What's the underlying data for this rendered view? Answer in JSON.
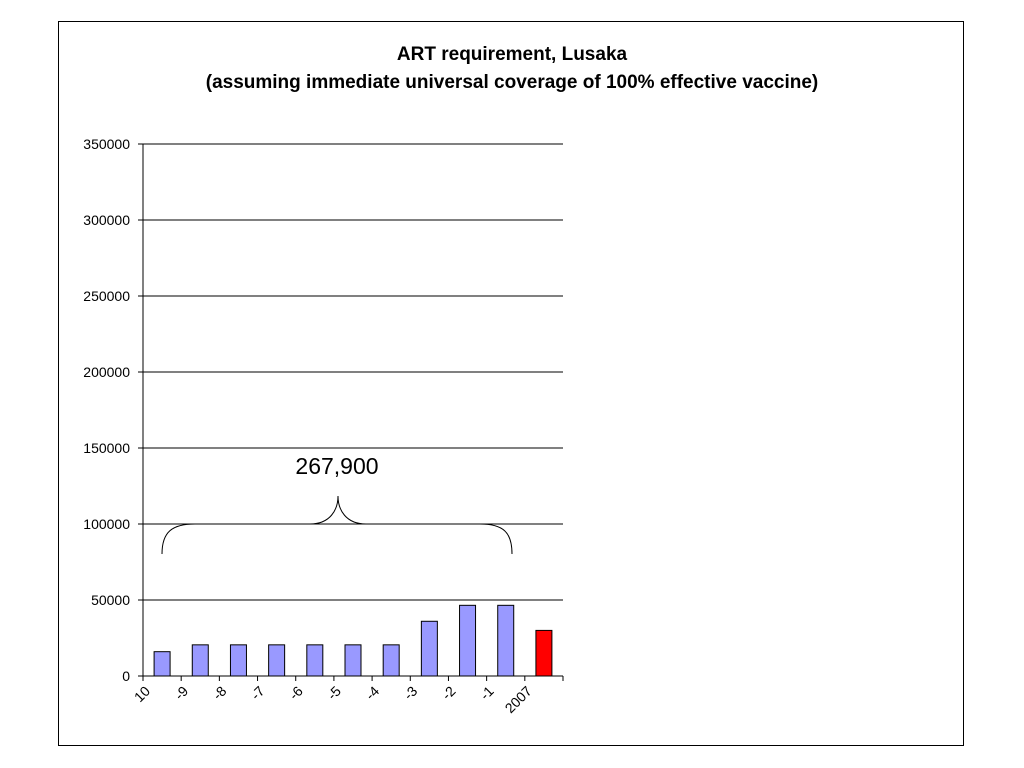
{
  "chart_data": {
    "type": "bar",
    "title": "ART requirement, Lusaka",
    "subtitle": "(assuming immediate universal coverage of 100% effective vaccine)",
    "xlabel": "",
    "ylabel": "",
    "categories": [
      "10",
      "-9",
      "-8",
      "-7",
      "-6",
      "-5",
      "-4",
      "-3",
      "-2",
      "-1",
      "2007"
    ],
    "values": [
      16000,
      20500,
      20500,
      20500,
      20500,
      20500,
      20500,
      36000,
      46500,
      46500,
      30000
    ],
    "bar_colors": [
      "#9999ff",
      "#9999ff",
      "#9999ff",
      "#9999ff",
      "#9999ff",
      "#9999ff",
      "#9999ff",
      "#9999ff",
      "#9999ff",
      "#9999ff",
      "#ff0000"
    ],
    "ylim": [
      0,
      350000
    ],
    "yticks": [
      "0",
      "50000",
      "100000",
      "150000",
      "200000",
      "250000",
      "300000",
      "350000"
    ],
    "grid": true,
    "annotation": "267,900"
  }
}
